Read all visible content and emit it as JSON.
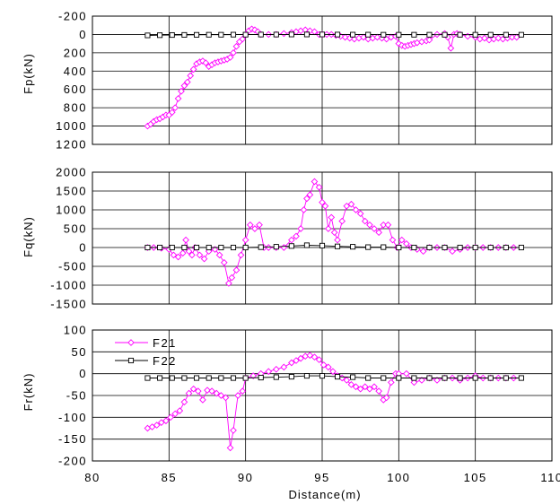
{
  "chart_data": [
    {
      "type": "line",
      "ylabel": "Fp(kN)",
      "xlim": [
        80,
        110
      ],
      "ylim": [
        -200,
        1200
      ],
      "y_inverted": true,
      "grid": true,
      "x_ticks": [
        "80",
        "85",
        "90",
        "95",
        "100",
        "105",
        "110"
      ],
      "y_ticks": [
        "-200",
        "0",
        "200",
        "400",
        "600",
        "800",
        "1000",
        "1200"
      ],
      "y_tick_values": [
        -200,
        0,
        200,
        400,
        600,
        800,
        1000,
        1200
      ],
      "series": [
        {
          "name": "F21",
          "color": "#ff00ff",
          "marker": "diamond",
          "x": [
            83.6,
            83.8,
            84.0,
            84.2,
            84.4,
            84.6,
            84.8,
            85.0,
            85.2,
            85.4,
            85.6,
            85.8,
            86.0,
            86.2,
            86.4,
            86.6,
            86.8,
            87.0,
            87.2,
            87.4,
            87.6,
            87.8,
            88.0,
            88.2,
            88.4,
            88.6,
            88.8,
            89.0,
            89.2,
            89.4,
            89.6,
            89.8,
            90.0,
            90.2,
            90.4,
            90.6,
            90.8,
            91.0,
            91.5,
            92.0,
            92.5,
            93.0,
            93.3,
            93.6,
            93.9,
            94.2,
            94.5,
            94.8,
            95.0,
            95.3,
            95.6,
            95.9,
            96.2,
            96.5,
            96.8,
            97.1,
            97.4,
            97.7,
            98.0,
            98.3,
            98.6,
            98.9,
            99.2,
            99.5,
            99.8,
            100.0,
            100.2,
            100.4,
            100.6,
            100.8,
            101.0,
            101.2,
            101.5,
            101.8,
            102.0,
            102.5,
            103.0,
            103.2,
            103.4,
            103.6,
            103.8,
            104.0,
            104.5,
            105.0,
            105.3,
            105.6,
            105.9,
            106.2,
            106.5,
            106.8,
            107.1,
            107.4,
            107.7
          ],
          "y": [
            1000,
            980,
            950,
            930,
            920,
            900,
            880,
            880,
            850,
            800,
            700,
            620,
            560,
            520,
            450,
            380,
            320,
            300,
            290,
            310,
            350,
            330,
            310,
            300,
            290,
            280,
            270,
            250,
            200,
            130,
            80,
            50,
            0,
            -40,
            -60,
            -50,
            -30,
            0,
            0,
            0,
            -10,
            -20,
            -30,
            -40,
            -50,
            -40,
            -30,
            0,
            0,
            0,
            0,
            10,
            20,
            30,
            40,
            50,
            40,
            30,
            50,
            40,
            30,
            40,
            50,
            30,
            20,
            100,
            120,
            130,
            120,
            110,
            100,
            90,
            80,
            70,
            60,
            0,
            -10,
            30,
            150,
            0,
            -10,
            0,
            20,
            30,
            50,
            40,
            60,
            50,
            40,
            50,
            40,
            30,
            30
          ]
        },
        {
          "name": "F22",
          "color": "#000000",
          "marker": "square",
          "x": [
            83.6,
            84.4,
            85.2,
            86.0,
            86.8,
            87.6,
            88.4,
            89.2,
            90.0,
            91.0,
            92.0,
            93.0,
            94.0,
            95.0,
            96.0,
            97.0,
            98.0,
            99.0,
            100.0,
            101.0,
            102.0,
            103.0,
            104.0,
            105.0,
            106.0,
            107.0,
            108.0
          ],
          "y": [
            10,
            8,
            6,
            5,
            4,
            3,
            3,
            2,
            2,
            1,
            1,
            0,
            0,
            0,
            1,
            2,
            2,
            3,
            3,
            3,
            3,
            3,
            3,
            3,
            3,
            3,
            3
          ]
        }
      ]
    },
    {
      "type": "line",
      "ylabel": "Fq(kN)",
      "xlim": [
        80,
        110
      ],
      "ylim": [
        -1500,
        2000
      ],
      "grid": true,
      "x_ticks": [
        "80",
        "85",
        "90",
        "95",
        "100",
        "105",
        "110"
      ],
      "y_ticks": [
        "2000",
        "1500",
        "1000",
        "500",
        "0",
        "-500",
        "-1000",
        "-1500"
      ],
      "y_tick_values": [
        2000,
        1500,
        1000,
        500,
        0,
        -500,
        -1000,
        -1500
      ],
      "series": [
        {
          "name": "F21",
          "color": "#ff00ff",
          "marker": "diamond",
          "x": [
            83.6,
            84.0,
            84.5,
            85.0,
            85.3,
            85.6,
            85.9,
            86.1,
            86.3,
            86.5,
            86.7,
            87.0,
            87.3,
            87.6,
            88.0,
            88.3,
            88.6,
            88.9,
            89.1,
            89.4,
            89.7,
            90.0,
            90.3,
            90.6,
            90.9,
            91.2,
            91.5,
            92.0,
            92.5,
            93.0,
            93.3,
            93.6,
            93.8,
            94.0,
            94.2,
            94.5,
            94.8,
            95.0,
            95.2,
            95.4,
            95.6,
            95.8,
            96.0,
            96.3,
            96.6,
            96.9,
            97.2,
            97.5,
            97.8,
            98.1,
            98.4,
            98.7,
            99.0,
            99.3,
            99.6,
            99.9,
            100.2,
            100.5,
            100.8,
            101.2,
            101.6,
            102.0,
            102.5,
            103.0,
            103.5,
            104.0,
            104.5,
            105.0,
            105.5,
            106.0,
            106.5,
            107.0,
            107.5
          ],
          "y": [
            0,
            0,
            -20,
            -50,
            -200,
            -250,
            -150,
            200,
            -100,
            -200,
            0,
            -200,
            -300,
            -100,
            -50,
            -200,
            -400,
            -950,
            -800,
            -600,
            -200,
            200,
            600,
            500,
            600,
            0,
            0,
            0,
            0,
            200,
            300,
            500,
            1000,
            1300,
            1400,
            1750,
            1600,
            1200,
            1100,
            500,
            800,
            400,
            200,
            700,
            1100,
            1150,
            1000,
            900,
            700,
            600,
            500,
            400,
            600,
            600,
            200,
            0,
            200,
            100,
            0,
            -50,
            -100,
            0,
            0,
            0,
            -100,
            -50,
            0,
            0,
            0,
            0,
            0,
            0,
            0
          ]
        },
        {
          "name": "F22",
          "color": "#000000",
          "marker": "square",
          "x": [
            83.6,
            84.4,
            85.2,
            86.0,
            86.8,
            87.6,
            88.4,
            89.2,
            90.0,
            91.0,
            92.0,
            93.0,
            94.0,
            95.0,
            96.0,
            97.0,
            98.0,
            99.0,
            100.0,
            101.0,
            102.0,
            103.0,
            104.0,
            105.0,
            106.0,
            107.0,
            108.0
          ],
          "y": [
            0,
            0,
            0,
            0,
            0,
            0,
            0,
            0,
            0,
            10,
            20,
            40,
            60,
            50,
            30,
            20,
            10,
            10,
            0,
            0,
            0,
            0,
            0,
            0,
            0,
            0,
            0
          ]
        }
      ]
    },
    {
      "type": "line",
      "ylabel": "Fr(kN)",
      "xlabel": "Distance(m)",
      "xlim": [
        80,
        110
      ],
      "ylim": [
        -200,
        100
      ],
      "grid": true,
      "legend": "top-left",
      "x_ticks": [
        "80",
        "85",
        "90",
        "95",
        "100",
        "105",
        "110"
      ],
      "y_ticks": [
        "100",
        "50",
        "0",
        "-50",
        "-100",
        "-150",
        "-200"
      ],
      "y_tick_values": [
        100,
        50,
        0,
        -50,
        -100,
        -150,
        -200
      ],
      "series": [
        {
          "name": "F21",
          "color": "#ff00ff",
          "marker": "diamond",
          "x": [
            83.6,
            83.9,
            84.2,
            84.5,
            84.8,
            85.1,
            85.4,
            85.7,
            86.0,
            86.3,
            86.6,
            86.9,
            87.2,
            87.5,
            87.8,
            88.1,
            88.4,
            88.7,
            89.0,
            89.2,
            89.5,
            89.8,
            90.0,
            90.5,
            91.0,
            91.5,
            92.0,
            92.5,
            93.0,
            93.3,
            93.6,
            93.9,
            94.2,
            94.5,
            94.8,
            95.1,
            95.4,
            95.7,
            96.0,
            96.3,
            96.6,
            96.9,
            97.2,
            97.5,
            97.8,
            98.1,
            98.4,
            98.7,
            99.0,
            99.2,
            99.5,
            99.8,
            100.0,
            100.5,
            101.0,
            101.5,
            102.0,
            102.5,
            103.0,
            103.5,
            104.0,
            104.5,
            105.0,
            105.5,
            106.0,
            106.5,
            107.0,
            107.5
          ],
          "y": [
            -125,
            -122,
            -118,
            -112,
            -108,
            -100,
            -92,
            -85,
            -65,
            -45,
            -35,
            -40,
            -60,
            -38,
            -40,
            -45,
            -50,
            -55,
            -170,
            -130,
            -50,
            -40,
            -10,
            -5,
            0,
            5,
            10,
            15,
            25,
            30,
            35,
            40,
            42,
            38,
            32,
            20,
            15,
            5,
            -5,
            -10,
            -15,
            -25,
            -30,
            -35,
            -30,
            -35,
            -30,
            -40,
            -60,
            -55,
            -20,
            0,
            0,
            0,
            -20,
            -15,
            -10,
            -15,
            -10,
            -10,
            -15,
            -10,
            -5,
            -10,
            -10,
            -10,
            -10,
            -10
          ]
        },
        {
          "name": "F22",
          "color": "#000000",
          "marker": "square",
          "x": [
            83.6,
            84.4,
            85.2,
            86.0,
            86.8,
            87.6,
            88.4,
            89.2,
            90.0,
            91.0,
            92.0,
            93.0,
            94.0,
            95.0,
            96.0,
            97.0,
            98.0,
            99.0,
            100.0,
            101.0,
            102.0,
            103.0,
            104.0,
            105.0,
            106.0,
            107.0,
            108.0
          ],
          "y": [
            -10,
            -10,
            -10,
            -10,
            -10,
            -10,
            -10,
            -10,
            -10,
            -9,
            -8,
            -7,
            -5,
            -5,
            -7,
            -8,
            -10,
            -10,
            -10,
            -10,
            -10,
            -10,
            -10,
            -10,
            -10,
            -10,
            -10
          ]
        }
      ]
    }
  ]
}
